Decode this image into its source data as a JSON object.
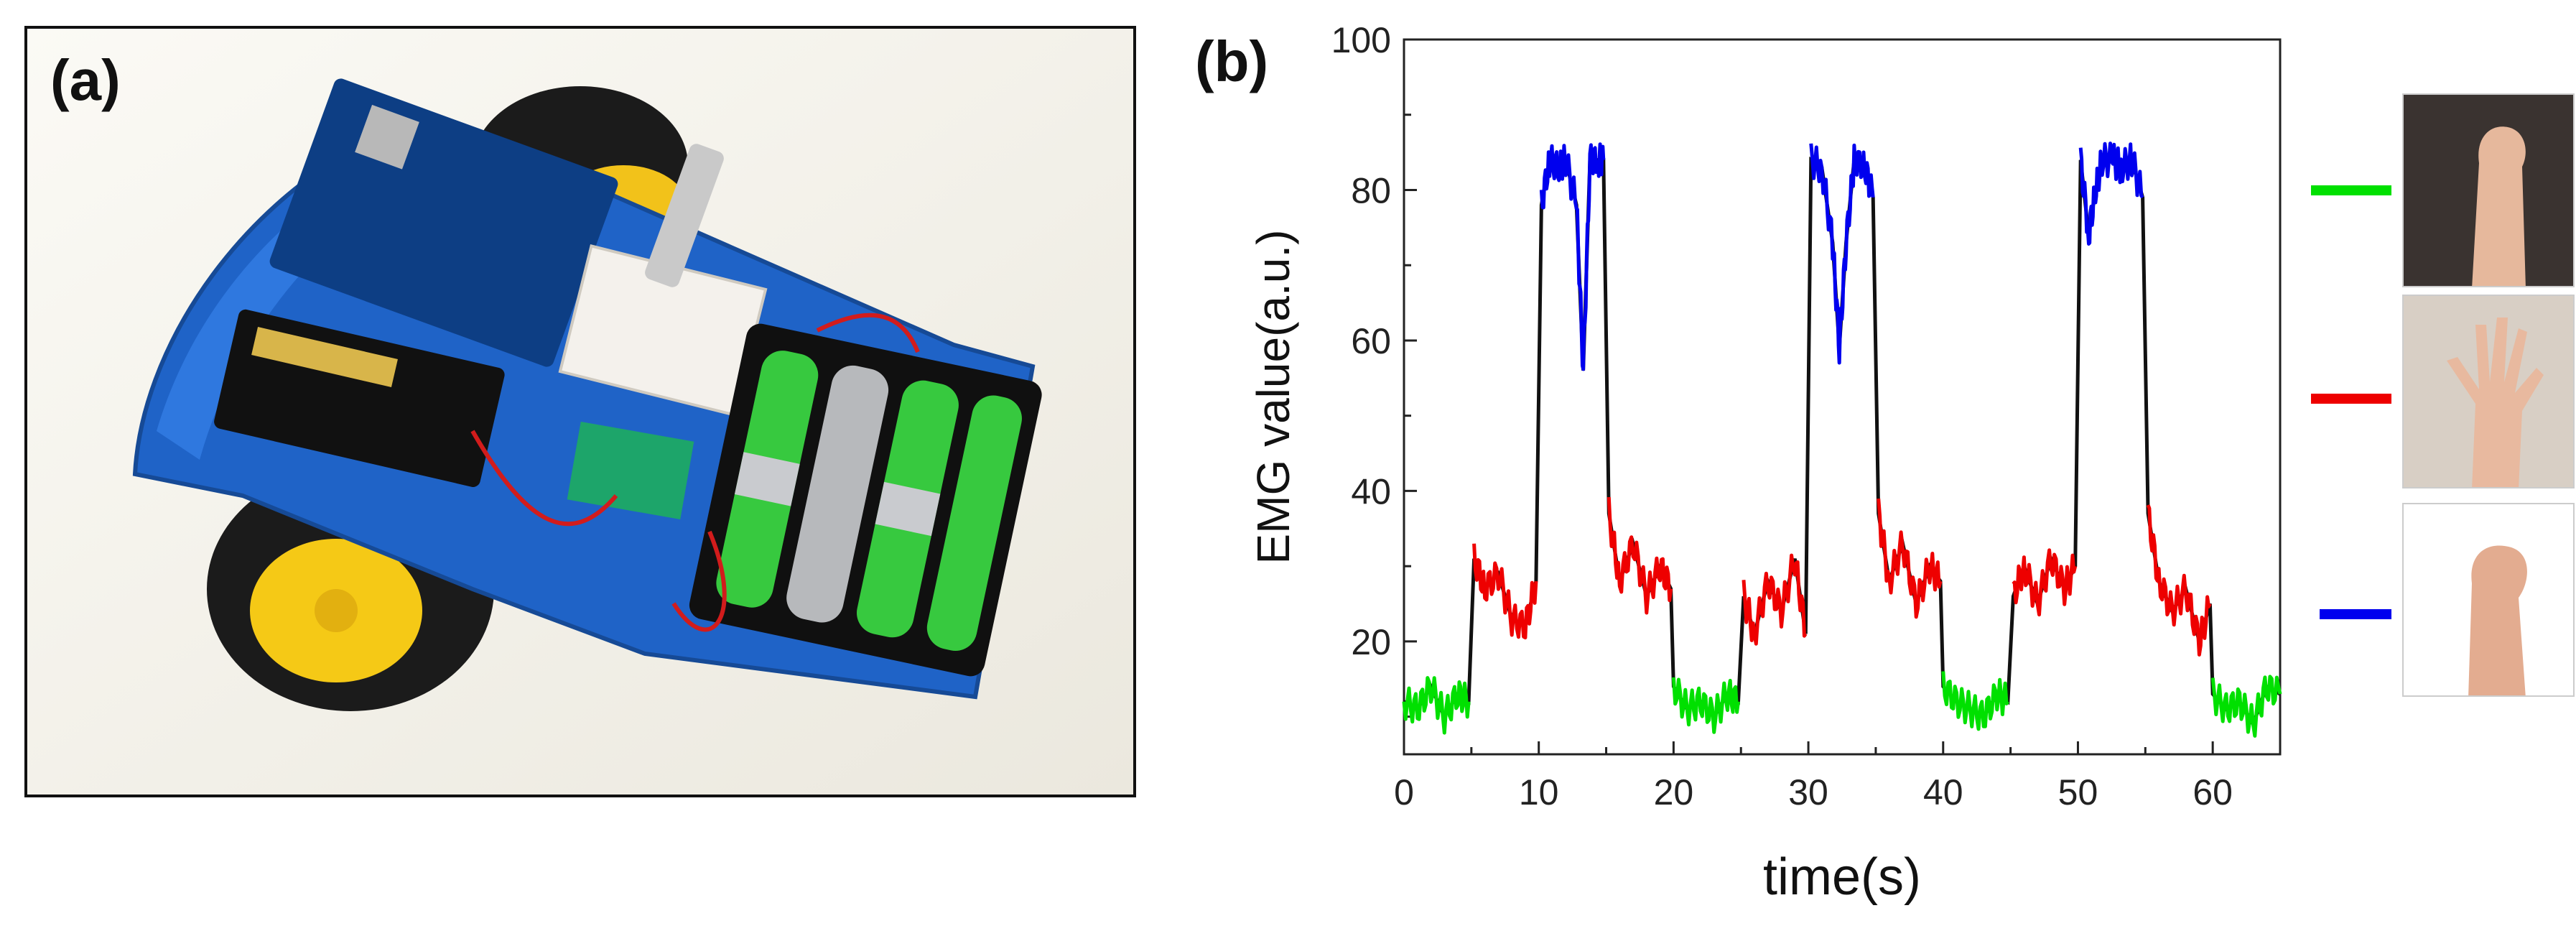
{
  "panel_a": {
    "label": "(a)",
    "photo": "robot-car-photo"
  },
  "panel_b": {
    "label": "(b)"
  },
  "chart_data": {
    "type": "line",
    "xlabel": "time(s)",
    "ylabel": "EMG value(a.u.)",
    "xlim": [
      0,
      65
    ],
    "ylim": [
      5,
      100
    ],
    "xticks": [
      0,
      10,
      20,
      30,
      40,
      50,
      60
    ],
    "yticks": [
      20,
      40,
      60,
      80,
      100
    ],
    "grid": false,
    "series": [
      {
        "color": "#00e000",
        "segments": [
          [
            0,
            5
          ],
          [
            20,
            25
          ],
          [
            40,
            45
          ],
          [
            60,
            65
          ]
        ],
        "points": [
          [
            0,
            12
          ],
          [
            1,
            11
          ],
          [
            2,
            14
          ],
          [
            3,
            10
          ],
          [
            4,
            13
          ],
          [
            4.8,
            12
          ],
          [
            20,
            14
          ],
          [
            21,
            11
          ],
          [
            22,
            12
          ],
          [
            23,
            10
          ],
          [
            24,
            13
          ],
          [
            24.8,
            12
          ],
          [
            40,
            14
          ],
          [
            41,
            12
          ],
          [
            42,
            11
          ],
          [
            43,
            10
          ],
          [
            44,
            13
          ],
          [
            44.8,
            12
          ],
          [
            60,
            13
          ],
          [
            61,
            11
          ],
          [
            62,
            12
          ],
          [
            63,
            9
          ],
          [
            64,
            14
          ],
          [
            65,
            13
          ]
        ]
      },
      {
        "color": "#ee0000",
        "segments": [
          [
            5,
            10
          ],
          [
            15,
            20
          ],
          [
            25,
            30
          ],
          [
            35,
            40
          ],
          [
            45,
            50
          ],
          [
            55,
            60
          ]
        ],
        "points": [
          [
            5.2,
            31
          ],
          [
            6,
            27
          ],
          [
            7,
            29
          ],
          [
            8,
            23
          ],
          [
            9,
            22
          ],
          [
            9.8,
            28
          ],
          [
            15.2,
            37
          ],
          [
            16,
            28
          ],
          [
            17,
            33
          ],
          [
            18,
            26
          ],
          [
            19,
            30
          ],
          [
            19.8,
            27
          ],
          [
            25.2,
            26
          ],
          [
            26,
            21
          ],
          [
            27,
            28
          ],
          [
            28,
            24
          ],
          [
            29,
            31
          ],
          [
            29.8,
            21
          ],
          [
            35.2,
            37
          ],
          [
            36,
            28
          ],
          [
            37,
            33
          ],
          [
            38,
            25
          ],
          [
            39,
            30
          ],
          [
            39.8,
            28
          ],
          [
            45.2,
            26
          ],
          [
            46,
            30
          ],
          [
            47,
            25
          ],
          [
            48,
            31
          ],
          [
            49,
            27
          ],
          [
            49.8,
            30
          ],
          [
            55.2,
            37
          ],
          [
            56,
            28
          ],
          [
            57,
            24
          ],
          [
            58,
            27
          ],
          [
            59,
            20
          ],
          [
            59.8,
            25
          ]
        ]
      },
      {
        "color": "#0000ee",
        "segments": [
          [
            10,
            15
          ],
          [
            30,
            35
          ],
          [
            50,
            55
          ]
        ],
        "points": [
          [
            10.2,
            78
          ],
          [
            10.8,
            84
          ],
          [
            11.5,
            83
          ],
          [
            12,
            84
          ],
          [
            12.8,
            78
          ],
          [
            13.3,
            56
          ],
          [
            13.8,
            84
          ],
          [
            14.4,
            84
          ],
          [
            14.8,
            84
          ],
          [
            30.2,
            84
          ],
          [
            31,
            83
          ],
          [
            31.8,
            73
          ],
          [
            32.3,
            59
          ],
          [
            32.8,
            73
          ],
          [
            33.4,
            84
          ],
          [
            34.2,
            83
          ],
          [
            34.8,
            79
          ],
          [
            50.2,
            84
          ],
          [
            50.8,
            74
          ],
          [
            51.3,
            80
          ],
          [
            51.8,
            84
          ],
          [
            52.6,
            84
          ],
          [
            53.2,
            83
          ],
          [
            54,
            84
          ],
          [
            54.8,
            79
          ]
        ]
      }
    ],
    "legend": [
      {
        "color": "#00e000",
        "icon": "fist-raised-icon"
      },
      {
        "color": "#ee0000",
        "icon": "open-hand-icon"
      },
      {
        "color": "#0000ee",
        "icon": "clenched-fist-icon"
      }
    ]
  }
}
